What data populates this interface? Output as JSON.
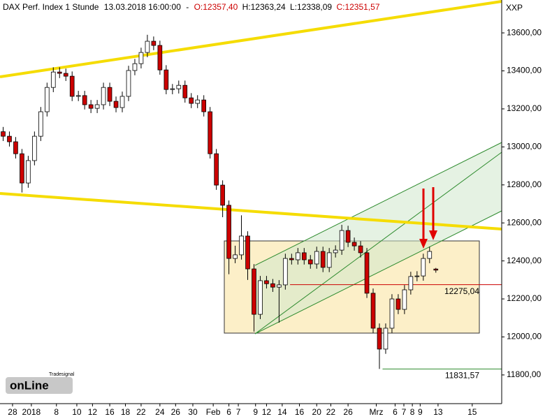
{
  "chart_data": {
    "type": "candlestick",
    "title": "DAX Perf. Index 1 Stunde",
    "timestamp": "13.03.2018 16:00:00",
    "separator": "-",
    "header_values": [
      {
        "value": 12357.4,
        "label": "O:12357,40"
      },
      {
        "value": 12363.24,
        "label": "H:12363,24"
      },
      {
        "value": 12338.09,
        "label": "L:12338,09"
      },
      {
        "value": 12351.57,
        "label": "C:12351,57"
      }
    ],
    "axis_label": "XXP",
    "logo": {
      "brand": "Tradesignal",
      "name": "onLine"
    },
    "up_color": "#ffffff",
    "down_color": "#cc0000",
    "wick_color": "#000000",
    "xlim": [
      0,
      160
    ],
    "ylim": [
      11649,
      13773
    ],
    "xticks": [
      {
        "value": 4,
        "label": "28"
      },
      {
        "value": 10,
        "label": "2018"
      },
      {
        "value": 18,
        "label": "8"
      },
      {
        "value": 24.5,
        "label": "10"
      },
      {
        "value": 29.5,
        "label": "12"
      },
      {
        "value": 35,
        "label": "16"
      },
      {
        "value": 40,
        "label": "18"
      },
      {
        "value": 45,
        "label": "22"
      },
      {
        "value": 51,
        "label": "24"
      },
      {
        "value": 56,
        "label": "26"
      },
      {
        "value": 61.5,
        "label": "30"
      },
      {
        "value": 68,
        "label": "Feb"
      },
      {
        "value": 73,
        "label": "6"
      },
      {
        "value": 76,
        "label": "7"
      },
      {
        "value": 81.5,
        "label": "9"
      },
      {
        "value": 85,
        "label": "12"
      },
      {
        "value": 90,
        "label": "14"
      },
      {
        "value": 95.5,
        "label": "16"
      },
      {
        "value": 101,
        "label": "20"
      },
      {
        "value": 105.5,
        "label": "22"
      },
      {
        "value": 111,
        "label": "26"
      },
      {
        "value": 120,
        "label": "Mrz"
      },
      {
        "value": 126,
        "label": "6"
      },
      {
        "value": 128.8,
        "label": "7"
      },
      {
        "value": 131.5,
        "label": "8"
      },
      {
        "value": 134,
        "label": "9"
      },
      {
        "value": 139.7,
        "label": "13"
      },
      {
        "value": 150.6,
        "label": "15"
      }
    ],
    "yticks": [
      {
        "value": 11800,
        "label": "11800,00"
      },
      {
        "value": 12000,
        "label": "12000,00"
      },
      {
        "value": 12200,
        "label": "12200,00"
      },
      {
        "value": 12400,
        "label": "12400,00"
      },
      {
        "value": 12600,
        "label": "12600,00"
      },
      {
        "value": 12800,
        "label": "12800,00"
      },
      {
        "value": 13000,
        "label": "13000,00"
      },
      {
        "value": 13200,
        "label": "13200,00"
      },
      {
        "value": 13400,
        "label": "13400,00"
      },
      {
        "value": 13600,
        "label": "13600,00"
      }
    ],
    "levels": [
      {
        "value": 12275.04,
        "label": "12275,04",
        "color": "#cc0000",
        "from": 92.5
      },
      {
        "value": 11831.57,
        "label": "11831,57",
        "color": "#2e8b2e",
        "from": 122
      }
    ],
    "x": [
      1,
      3,
      5,
      7,
      9,
      11,
      13,
      15,
      17,
      19,
      21,
      23,
      25,
      27,
      29,
      31,
      33,
      35,
      37,
      39,
      41,
      43,
      45,
      47,
      49,
      51,
      53,
      55,
      57,
      59,
      61,
      63,
      65,
      67,
      69,
      71,
      73,
      75,
      77,
      79,
      81,
      83,
      85,
      87,
      89,
      91,
      93,
      95,
      97,
      99,
      101,
      103,
      105,
      107,
      109,
      111,
      113,
      115,
      117,
      119,
      121,
      123,
      125,
      127,
      129,
      131,
      133,
      135,
      137,
      139
    ],
    "open": [
      13080,
      13056,
      13027,
      12964,
      12810,
      12928,
      13056,
      13185,
      13313,
      13394,
      13387,
      13372,
      13266,
      13270,
      13222,
      13203,
      13222,
      13313,
      13240,
      13207,
      13266,
      13402,
      13438,
      13497,
      13556,
      13534,
      13405,
      13302,
      13306,
      13324,
      13258,
      13229,
      13247,
      13185,
      12964,
      12799,
      12693,
      12413,
      12432,
      12531,
      12358,
      12119,
      12296,
      12280,
      12262,
      12274,
      12413,
      12406,
      12443,
      12406,
      12384,
      12450,
      12366,
      12443,
      12457,
      12560,
      12498,
      12479,
      12443,
      12230,
      12046,
      11936,
      12046,
      12200,
      12145,
      12248,
      12318,
      12321,
      12413,
      12357.4
    ],
    "high": [
      13105,
      13081,
      13052,
      12989,
      12953,
      13081,
      13210,
      13338,
      13419,
      13419,
      13412,
      13397,
      13295,
      13295,
      13247,
      13247,
      13338,
      13338,
      13265,
      13291,
      13427,
      13463,
      13522,
      13590,
      13581,
      13559,
      13430,
      13331,
      13349,
      13349,
      13283,
      13272,
      13272,
      13210,
      12989,
      12824,
      12718,
      12480,
      12640,
      12556,
      12383,
      12321,
      12321,
      12305,
      12299,
      12438,
      12438,
      12468,
      12468,
      12431,
      12475,
      12475,
      12468,
      12482,
      12590,
      12585,
      12523,
      12504,
      12468,
      12255,
      12071,
      12071,
      12225,
      12225,
      12273,
      12343,
      12346,
      12438,
      12475,
      12363.24
    ],
    "low": [
      13031,
      13002,
      12939,
      12760,
      12785,
      12903,
      13031,
      13160,
      13288,
      13362,
      13347,
      13241,
      13241,
      13197,
      13178,
      13178,
      13197,
      13215,
      13182,
      13182,
      13241,
      13377,
      13413,
      13472,
      13509,
      13380,
      13277,
      13277,
      13281,
      13233,
      13204,
      13204,
      13160,
      12939,
      12774,
      12630,
      12330,
      12388,
      12407,
      12300,
      12028,
      12094,
      12255,
      12237,
      12075,
      12249,
      12381,
      12381,
      12381,
      12359,
      12359,
      12341,
      12341,
      12418,
      12432,
      12473,
      12454,
      12418,
      12205,
      12021,
      11831.57,
      11911,
      12021,
      12120,
      12120,
      12223,
      12293,
      12296,
      12388,
      12338.09
    ],
    "close": [
      13056,
      13027,
      12964,
      12810,
      12928,
      13056,
      13185,
      13313,
      13394,
      13387,
      13372,
      13266,
      13270,
      13222,
      13203,
      13222,
      13313,
      13240,
      13207,
      13266,
      13402,
      13438,
      13497,
      13556,
      13534,
      13405,
      13302,
      13306,
      13324,
      13258,
      13229,
      13247,
      13185,
      12964,
      12799,
      12693,
      12413,
      12432,
      12531,
      12358,
      12119,
      12296,
      12280,
      12262,
      12274,
      12413,
      12406,
      12443,
      12406,
      12384,
      12450,
      12366,
      12443,
      12457,
      12560,
      12498,
      12479,
      12443,
      12230,
      12046,
      11936,
      12046,
      12200,
      12145,
      12248,
      12318,
      12321,
      12413,
      12450,
      12351.57
    ]
  }
}
